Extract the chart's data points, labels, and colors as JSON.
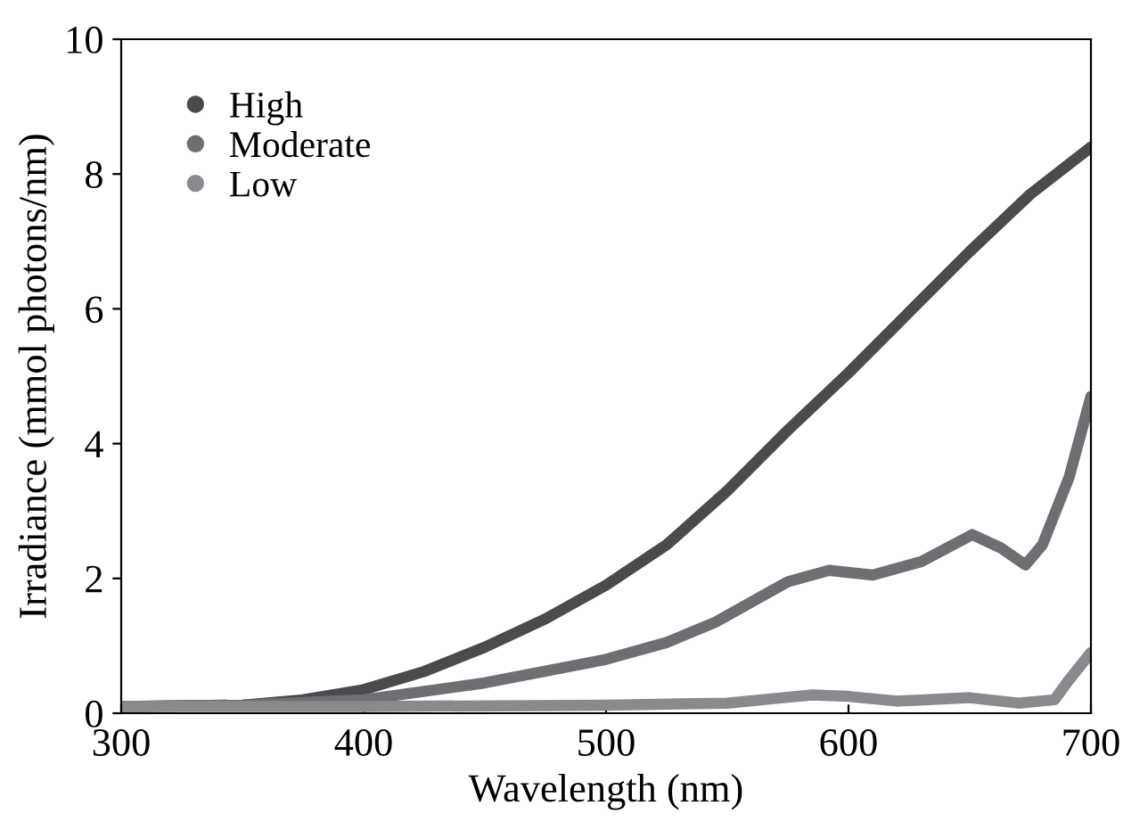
{
  "chart_data": {
    "type": "line",
    "xlabel": "Wavelength (nm)",
    "ylabel": "Irradiance (mmol photons/nm)",
    "xlim": [
      300,
      700
    ],
    "xticks": [
      300,
      400,
      500,
      600,
      700
    ],
    "ylim": [
      0,
      10
    ],
    "yticks": [
      0,
      2,
      4,
      6,
      8,
      10
    ],
    "grid": false,
    "legend": "top left",
    "series": [
      {
        "name": "High",
        "color": "#4b4b4e",
        "x": [
          300,
          350,
          375,
          400,
          425,
          450,
          475,
          500,
          525,
          550,
          575,
          600,
          625,
          650,
          675,
          700
        ],
        "values": [
          0.1,
          0.12,
          0.2,
          0.35,
          0.62,
          0.98,
          1.4,
          1.9,
          2.5,
          3.3,
          4.2,
          5.05,
          5.95,
          6.85,
          7.7,
          8.4
        ]
      },
      {
        "name": "Moderate",
        "color": "#6f6f73",
        "x": [
          300,
          350,
          400,
          450,
          500,
          525,
          545,
          560,
          575,
          592,
          610,
          630,
          651,
          663,
          673,
          680,
          691,
          700
        ],
        "values": [
          0.1,
          0.12,
          0.2,
          0.45,
          0.8,
          1.05,
          1.35,
          1.65,
          1.95,
          2.12,
          2.05,
          2.25,
          2.65,
          2.45,
          2.2,
          2.5,
          3.5,
          4.7
        ]
      },
      {
        "name": "Low",
        "color": "#8a8a8e",
        "x": [
          300,
          400,
          500,
          550,
          570,
          585,
          600,
          620,
          650,
          670,
          685,
          690,
          700
        ],
        "values": [
          0.1,
          0.1,
          0.12,
          0.15,
          0.22,
          0.27,
          0.25,
          0.18,
          0.23,
          0.15,
          0.2,
          0.45,
          0.9
        ]
      }
    ]
  }
}
